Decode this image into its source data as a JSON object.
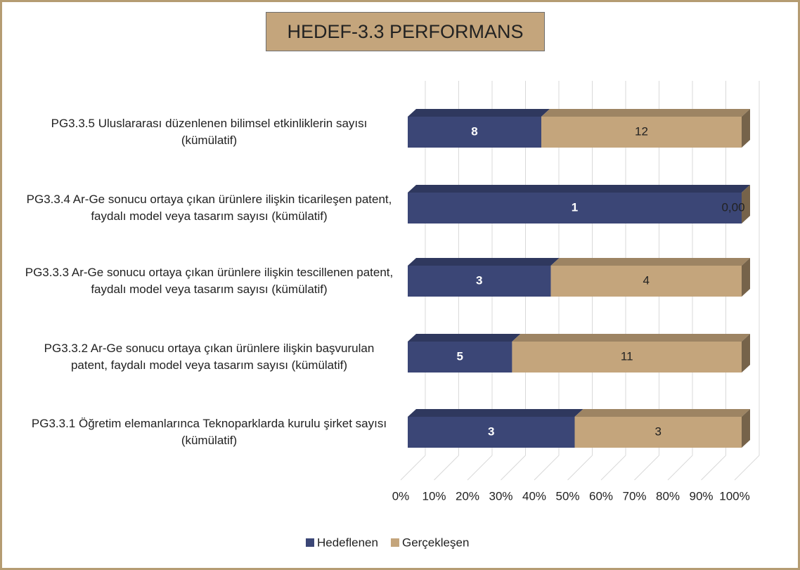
{
  "chart_data": {
    "type": "bar",
    "orientation": "horizontal",
    "stacking": "percent",
    "title": "HEDEF-3.3 PERFORMANS",
    "categories": [
      "PG3.3.5 Uluslararası düzenlenen bilimsel etkinliklerin sayısı (kümülatif)",
      "PG3.3.4 Ar-Ge sonucu ortaya çıkan ürünlere ilişkin ticarileşen patent, faydalı model veya tasarım sayısı (kümülatif)",
      "PG3.3.3 Ar-Ge sonucu ortaya çıkan ürünlere ilişkin tescillenen patent, faydalı model veya tasarım sayısı (kümülatif)",
      "PG3.3.2 Ar-Ge sonucu ortaya çıkan ürünlere ilişkin başvurulan patent, faydalı model veya tasarım sayısı (kümülatif)",
      "PG3.3.1 Öğretim elemanlarınca Teknoparklarda kurulu şirket sayısı (kümülatif)"
    ],
    "series": [
      {
        "name": "Hedeflenen",
        "color": "#3b4676",
        "values": [
          8,
          1,
          3,
          5,
          3
        ]
      },
      {
        "name": "Gerçekleşen",
        "color": "#c4a57c",
        "values": [
          12,
          0,
          4,
          11,
          3
        ],
        "value_labels": [
          "12",
          "0,00",
          "4",
          "11",
          "3"
        ]
      }
    ],
    "xlim": [
      0,
      100
    ],
    "xticks": [
      {
        "value": 0,
        "label": "0%"
      },
      {
        "value": 10,
        "label": "10%"
      },
      {
        "value": 20,
        "label": "20%"
      },
      {
        "value": 30,
        "label": "30%"
      },
      {
        "value": 40,
        "label": "40%"
      },
      {
        "value": 50,
        "label": "50%"
      },
      {
        "value": 60,
        "label": "60%"
      },
      {
        "value": 70,
        "label": "70%"
      },
      {
        "value": 80,
        "label": "80%"
      },
      {
        "value": 90,
        "label": "90%"
      },
      {
        "value": 100,
        "label": "100%"
      }
    ],
    "grid": true,
    "legend": "bottom"
  }
}
